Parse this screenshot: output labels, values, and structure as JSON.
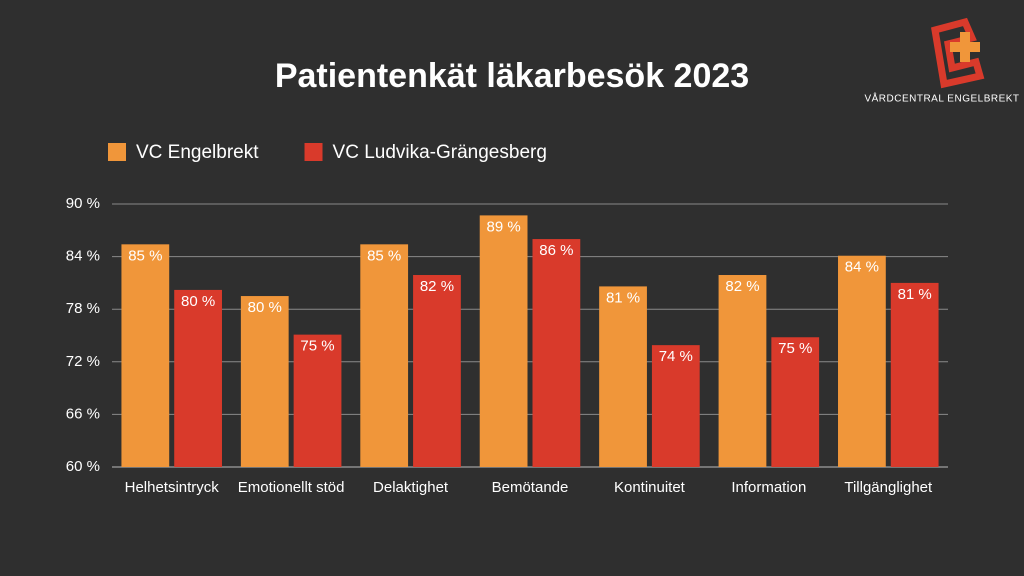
{
  "chart_data": {
    "type": "bar",
    "title": "Patientenkät läkarbesök 2023",
    "categories": [
      "Helhetsintryck",
      "Emotionellt stöd",
      "Delaktighet",
      "Bemötande",
      "Kontinuitet",
      "Information",
      "Tillgänglighet"
    ],
    "series": [
      {
        "name": "VC Engelbrekt",
        "color": "#f0963a",
        "values": [
          85.4,
          79.5,
          85.4,
          88.7,
          80.6,
          81.9,
          84.1
        ],
        "value_labels": [
          "85 %",
          "80 %",
          "85 %",
          "89 %",
          "81 %",
          "82 %",
          "84 %"
        ]
      },
      {
        "name": "VC Ludvika-Grängesberg",
        "color": "#d93a2b",
        "values": [
          80.2,
          75.1,
          81.9,
          86.0,
          73.9,
          74.8,
          81.0
        ],
        "value_labels": [
          "80 %",
          "75 %",
          "82 %",
          "86 %",
          "74 %",
          "75 %",
          "81 %"
        ]
      }
    ],
    "ylim": [
      60,
      90
    ],
    "yticks": [
      {
        "value": 60,
        "label": "60 %"
      },
      {
        "value": 66,
        "label": "66 %"
      },
      {
        "value": 72,
        "label": "72 %"
      },
      {
        "value": 78,
        "label": "78 %"
      },
      {
        "value": 84,
        "label": "84 %"
      },
      {
        "value": 90,
        "label": "90 %"
      }
    ],
    "grid": true,
    "legend": "top-left"
  },
  "logo": {
    "text": "VÅRDCENTRAL ENGELBREKT"
  }
}
